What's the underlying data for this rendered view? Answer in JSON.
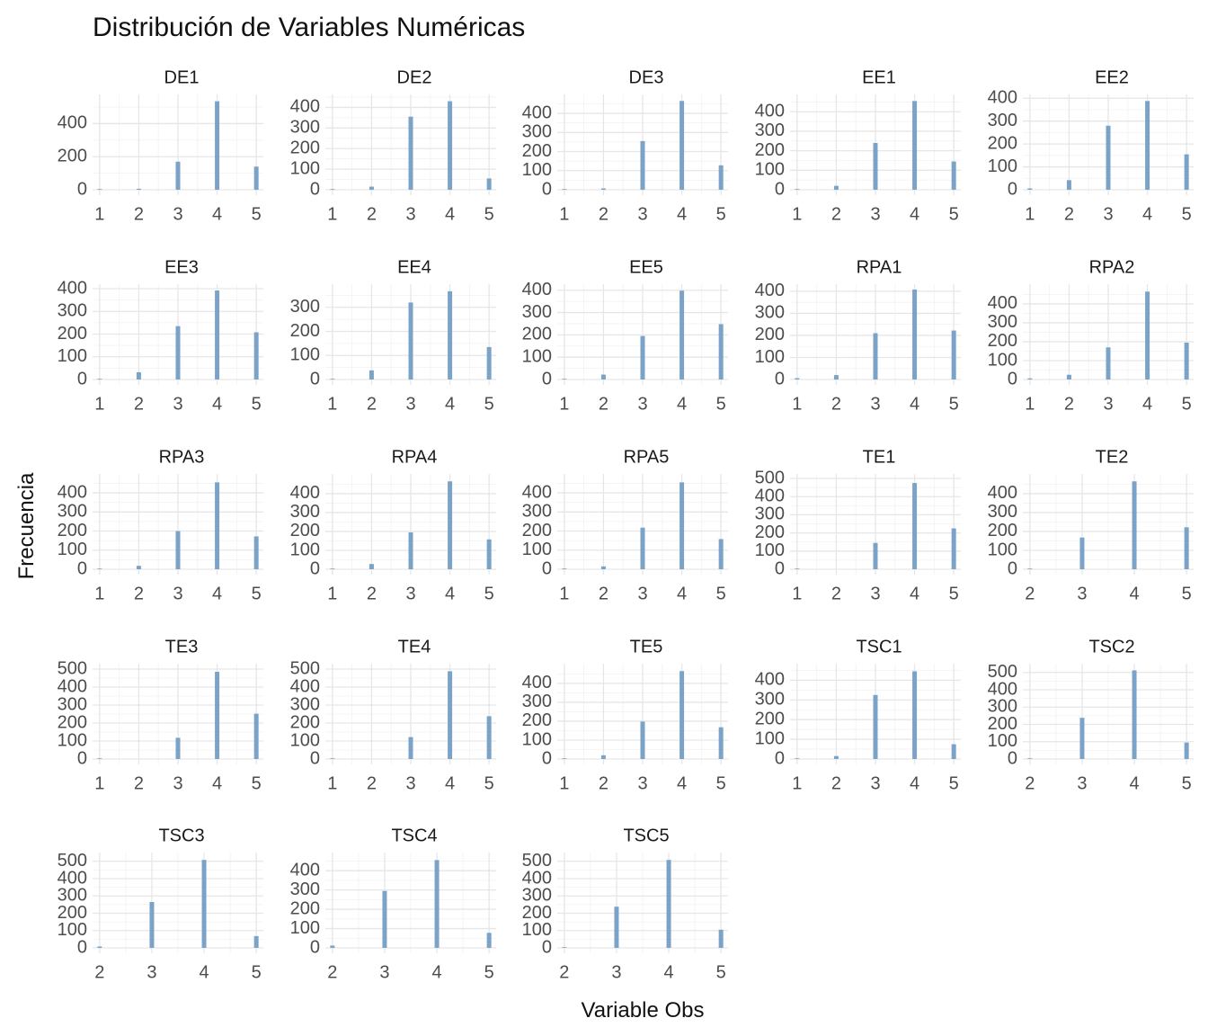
{
  "chart_data": {
    "type": "bar",
    "title": "Distribución de Variables Numéricas",
    "xlabel": "Variable Obs",
    "ylabel": "Frecuencia",
    "grid": true,
    "bar_color": "#7ba3c7",
    "facets": [
      {
        "name": "DE1",
        "x_ticks": [
          1,
          2,
          3,
          4,
          5
        ],
        "y_ticks": [
          0,
          200,
          400
        ],
        "ylim": [
          0,
          560
        ],
        "x": [
          1,
          2,
          3,
          4,
          5
        ],
        "values": [
          1,
          6,
          170,
          535,
          140
        ]
      },
      {
        "name": "DE2",
        "x_ticks": [
          1,
          2,
          3,
          4,
          5
        ],
        "y_ticks": [
          0,
          100,
          200,
          300,
          400
        ],
        "ylim": [
          0,
          450
        ],
        "x": [
          1,
          2,
          3,
          4,
          5
        ],
        "values": [
          1,
          15,
          355,
          430,
          55
        ]
      },
      {
        "name": "DE3",
        "x_ticks": [
          1,
          2,
          3,
          4,
          5
        ],
        "y_ticks": [
          0,
          100,
          200,
          300,
          400
        ],
        "ylim": [
          0,
          485
        ],
        "x": [
          1,
          2,
          3,
          4,
          5
        ],
        "values": [
          1,
          7,
          255,
          465,
          128
        ]
      },
      {
        "name": "EE1",
        "x_ticks": [
          1,
          2,
          3,
          4,
          5
        ],
        "y_ticks": [
          0,
          100,
          200,
          300,
          400
        ],
        "ylim": [
          0,
          475
        ],
        "x": [
          1,
          2,
          3,
          4,
          5
        ],
        "values": [
          3,
          20,
          240,
          455,
          145
        ]
      },
      {
        "name": "EE2",
        "x_ticks": [
          1,
          2,
          3,
          4,
          5
        ],
        "y_ticks": [
          0,
          100,
          200,
          300,
          400
        ],
        "ylim": [
          0,
          405
        ],
        "x": [
          1,
          2,
          3,
          4,
          5
        ],
        "values": [
          6,
          42,
          280,
          388,
          155
        ]
      },
      {
        "name": "EE3",
        "x_ticks": [
          1,
          2,
          3,
          4,
          5
        ],
        "y_ticks": [
          0,
          100,
          200,
          300,
          400
        ],
        "ylim": [
          0,
          408
        ],
        "x": [
          1,
          2,
          3,
          4,
          5
        ],
        "values": [
          1,
          32,
          235,
          392,
          208
        ]
      },
      {
        "name": "EE4",
        "x_ticks": [
          1,
          2,
          3,
          4,
          5
        ],
        "y_ticks": [
          0,
          100,
          200,
          300
        ],
        "ylim": [
          0,
          385
        ],
        "x": [
          1,
          2,
          3,
          4,
          5
        ],
        "values": [
          2,
          38,
          320,
          367,
          135
        ]
      },
      {
        "name": "EE5",
        "x_ticks": [
          1,
          2,
          3,
          4,
          5
        ],
        "y_ticks": [
          0,
          100,
          200,
          300,
          400
        ],
        "ylim": [
          0,
          415
        ],
        "x": [
          1,
          2,
          3,
          4,
          5
        ],
        "values": [
          2,
          22,
          195,
          398,
          248
        ]
      },
      {
        "name": "RPA1",
        "x_ticks": [
          1,
          2,
          3,
          4,
          5
        ],
        "y_ticks": [
          0,
          100,
          200,
          300,
          400
        ],
        "ylim": [
          0,
          420
        ],
        "x": [
          1,
          2,
          3,
          4,
          5
        ],
        "values": [
          6,
          20,
          210,
          408,
          222
        ]
      },
      {
        "name": "RPA2",
        "x_ticks": [
          1,
          2,
          3,
          4,
          5
        ],
        "y_ticks": [
          0,
          100,
          200,
          300,
          400
        ],
        "ylim": [
          0,
          490
        ],
        "x": [
          1,
          2,
          3,
          4,
          5
        ],
        "values": [
          6,
          25,
          170,
          465,
          195
        ]
      },
      {
        "name": "RPA3",
        "x_ticks": [
          1,
          2,
          3,
          4,
          5
        ],
        "y_ticks": [
          0,
          100,
          200,
          300,
          400
        ],
        "ylim": [
          0,
          485
        ],
        "x": [
          1,
          2,
          3,
          4,
          5
        ],
        "values": [
          1,
          18,
          200,
          455,
          172
        ]
      },
      {
        "name": "RPA4",
        "x_ticks": [
          1,
          2,
          3,
          4,
          5
        ],
        "y_ticks": [
          0,
          100,
          200,
          300,
          400
        ],
        "ylim": [
          0,
          490
        ],
        "x": [
          1,
          2,
          3,
          4,
          5
        ],
        "values": [
          1,
          28,
          195,
          465,
          158
        ]
      },
      {
        "name": "RPA5",
        "x_ticks": [
          1,
          2,
          3,
          4,
          5
        ],
        "y_ticks": [
          0,
          100,
          200,
          300,
          400
        ],
        "ylim": [
          0,
          485
        ],
        "x": [
          1,
          2,
          3,
          4,
          5
        ],
        "values": [
          1,
          15,
          218,
          455,
          158
        ]
      },
      {
        "name": "TE1",
        "x_ticks": [
          1,
          2,
          3,
          4,
          5
        ],
        "y_ticks": [
          0,
          100,
          200,
          300,
          400,
          500
        ],
        "ylim": [
          0,
          510
        ],
        "x": [
          1,
          3,
          4,
          5
        ],
        "values": [
          1,
          145,
          475,
          225
        ]
      },
      {
        "name": "TE2",
        "x_ticks": [
          2,
          3,
          4,
          5
        ],
        "y_ticks": [
          0,
          100,
          200,
          300,
          400
        ],
        "ylim": [
          0,
          490
        ],
        "x": [
          2,
          3,
          4,
          5
        ],
        "values": [
          1,
          168,
          465,
          222
        ]
      },
      {
        "name": "TE3",
        "x_ticks": [
          1,
          2,
          3,
          4,
          5
        ],
        "y_ticks": [
          0,
          100,
          200,
          300,
          400,
          500
        ],
        "ylim": [
          0,
          515
        ],
        "x": [
          1,
          3,
          4,
          5
        ],
        "values": [
          1,
          118,
          485,
          252
        ]
      },
      {
        "name": "TE4",
        "x_ticks": [
          1,
          2,
          3,
          4,
          5
        ],
        "y_ticks": [
          0,
          100,
          200,
          300,
          400,
          500
        ],
        "ylim": [
          0,
          515
        ],
        "x": [
          1,
          3,
          4,
          5
        ],
        "values": [
          1,
          122,
          488,
          238
        ]
      },
      {
        "name": "TE5",
        "x_ticks": [
          1,
          2,
          3,
          4,
          5
        ],
        "y_ticks": [
          0,
          100,
          200,
          300,
          400
        ],
        "ylim": [
          0,
          490
        ],
        "x": [
          1,
          2,
          3,
          4,
          5
        ],
        "values": [
          1,
          20,
          198,
          465,
          168
        ]
      },
      {
        "name": "TSC1",
        "x_ticks": [
          1,
          2,
          3,
          4,
          5
        ],
        "y_ticks": [
          0,
          100,
          200,
          300,
          400
        ],
        "ylim": [
          0,
          470
        ],
        "x": [
          1,
          2,
          3,
          4,
          5
        ],
        "values": [
          1,
          15,
          325,
          445,
          75
        ]
      },
      {
        "name": "TSC2",
        "x_ticks": [
          2,
          3,
          4,
          5
        ],
        "y_ticks": [
          0,
          100,
          200,
          300,
          400,
          500
        ],
        "ylim": [
          0,
          535
        ],
        "x": [
          2,
          3,
          4,
          5
        ],
        "values": [
          1,
          238,
          512,
          95
        ]
      },
      {
        "name": "TSC3",
        "x_ticks": [
          2,
          3,
          4,
          5
        ],
        "y_ticks": [
          0,
          100,
          200,
          300,
          400,
          500
        ],
        "ylim": [
          0,
          535
        ],
        "x": [
          2,
          3,
          4,
          5
        ],
        "values": [
          8,
          265,
          508,
          68
        ]
      },
      {
        "name": "TSC4",
        "x_ticks": [
          2,
          3,
          4,
          5
        ],
        "y_ticks": [
          0,
          100,
          200,
          300,
          400
        ],
        "ylim": [
          0,
          480
        ],
        "x": [
          2,
          3,
          4,
          5
        ],
        "values": [
          12,
          295,
          455,
          78
        ]
      },
      {
        "name": "TSC5",
        "x_ticks": [
          2,
          3,
          4,
          5
        ],
        "y_ticks": [
          0,
          100,
          200,
          300,
          400,
          500
        ],
        "ylim": [
          0,
          535
        ],
        "x": [
          2,
          3,
          4,
          5
        ],
        "values": [
          2,
          238,
          508,
          105
        ]
      }
    ]
  }
}
